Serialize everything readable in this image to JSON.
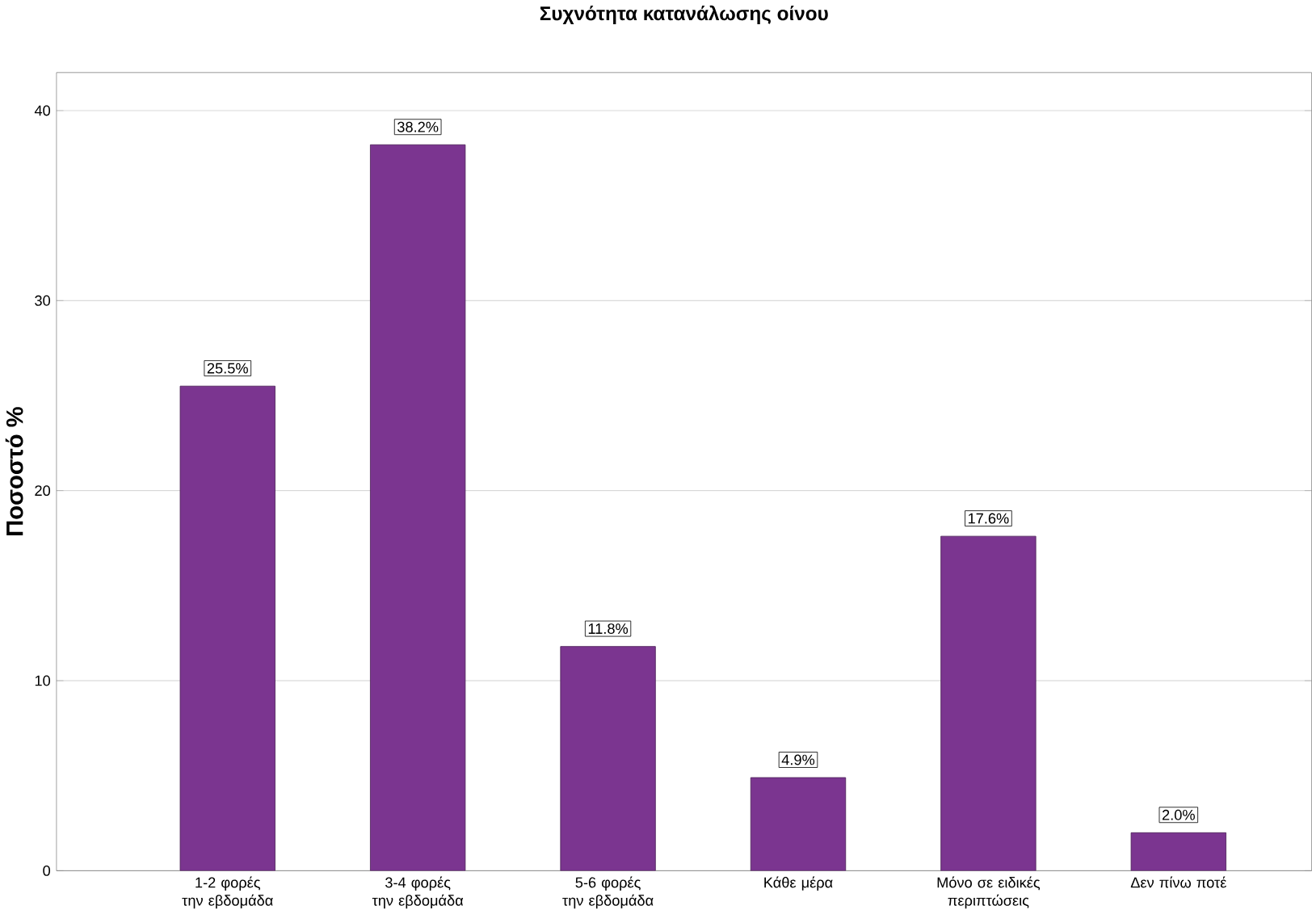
{
  "chart_data": {
    "type": "bar",
    "title": "Συχνότητα κατανάλωσης οίνου",
    "ylabel": "Ποσοστό %",
    "categories": [
      "1-2 φορές την εβδομάδα",
      "3-4 φορές την εβδομάδα",
      "5-6 φορές την εβδομάδα",
      "Κάθε μέρα",
      "Μόνο σε ειδικές περιπτώσεις",
      "Δεν πίνω ποτέ"
    ],
    "values": [
      25.5,
      38.2,
      11.8,
      4.9,
      17.6,
      2.0
    ],
    "value_labels": [
      "25.5%",
      "38.2%",
      "11.8%",
      "4.9%",
      "17.6%",
      "2.0%"
    ],
    "color": "#7b3590",
    "ylim": [
      0,
      42
    ],
    "yticks": [
      0,
      10,
      20,
      30,
      40
    ],
    "grid": "y"
  }
}
